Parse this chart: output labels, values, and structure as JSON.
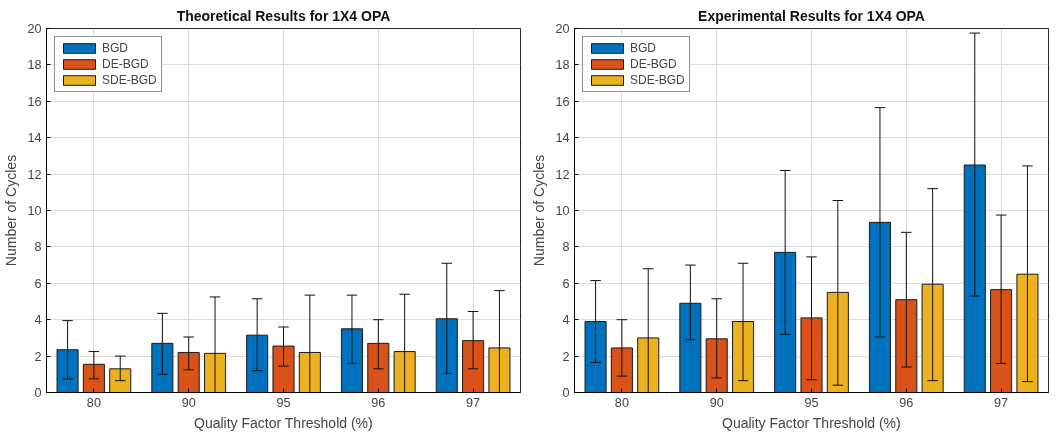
{
  "chart_data": [
    {
      "type": "bar",
      "title": "Theoretical Results for 1X4 OPA",
      "xlabel": "Quality Factor Threshold (%)",
      "ylabel": "Number of Cycles",
      "categories": [
        "80",
        "90",
        "95",
        "96",
        "97"
      ],
      "ylim": [
        0,
        20
      ],
      "yticks": [
        0,
        2,
        4,
        6,
        8,
        10,
        12,
        14,
        16,
        18,
        20
      ],
      "grid": true,
      "legend": "top left",
      "series": [
        {
          "name": "BGD",
          "color": "#0072bd",
          "values": [
            2.35,
            2.7,
            3.15,
            3.5,
            4.05
          ],
          "errors": [
            [
              0.75,
              3.95
            ],
            [
              1.0,
              4.35
            ],
            [
              1.2,
              5.15
            ],
            [
              1.6,
              5.35
            ],
            [
              1.05,
              7.1
            ]
          ]
        },
        {
          "name": "DE-BGD",
          "color": "#d95319",
          "values": [
            1.55,
            2.2,
            2.55,
            2.7,
            2.85
          ],
          "errors": [
            [
              0.75,
              2.25
            ],
            [
              1.25,
              3.05
            ],
            [
              1.45,
              3.6
            ],
            [
              1.3,
              4.0
            ],
            [
              1.3,
              4.45
            ]
          ]
        },
        {
          "name": "SDE-BGD",
          "color": "#edb120",
          "values": [
            1.3,
            2.15,
            2.2,
            2.25,
            2.45
          ],
          "errors": [
            [
              0.65,
              2.0
            ],
            [
              0,
              5.25
            ],
            [
              0,
              5.35
            ],
            [
              0,
              5.4
            ],
            [
              0,
              5.6
            ]
          ]
        }
      ]
    },
    {
      "type": "bar",
      "title": "Experimental Results for 1X4 OPA",
      "xlabel": "Quality Factor Threshold (%)",
      "ylabel": "Number of Cycles",
      "categories": [
        "80",
        "90",
        "95",
        "96",
        "97"
      ],
      "ylim": [
        0,
        20
      ],
      "yticks": [
        0,
        2,
        4,
        6,
        8,
        10,
        12,
        14,
        16,
        18,
        20
      ],
      "grid": true,
      "legend": "top left",
      "series": [
        {
          "name": "BGD",
          "color": "#0072bd",
          "values": [
            3.9,
            4.9,
            7.7,
            9.35,
            12.5
          ],
          "errors": [
            [
              1.65,
              6.15
            ],
            [
              2.9,
              7.0
            ],
            [
              3.2,
              12.2
            ],
            [
              3.05,
              15.65
            ],
            [
              5.3,
              19.75
            ]
          ]
        },
        {
          "name": "DE-BGD",
          "color": "#d95319",
          "values": [
            2.45,
            2.95,
            4.1,
            5.1,
            5.65
          ],
          "errors": [
            [
              0.9,
              4.0
            ],
            [
              0.8,
              5.15
            ],
            [
              0.7,
              7.45
            ],
            [
              1.4,
              8.8
            ],
            [
              1.6,
              9.75
            ]
          ]
        },
        {
          "name": "SDE-BGD",
          "color": "#edb120",
          "values": [
            3.0,
            3.9,
            5.5,
            5.95,
            6.5
          ],
          "errors": [
            [
              0,
              6.8
            ],
            [
              0.65,
              7.1
            ],
            [
              0.4,
              10.55
            ],
            [
              0.65,
              11.2
            ],
            [
              0.6,
              12.45
            ]
          ]
        }
      ]
    }
  ]
}
